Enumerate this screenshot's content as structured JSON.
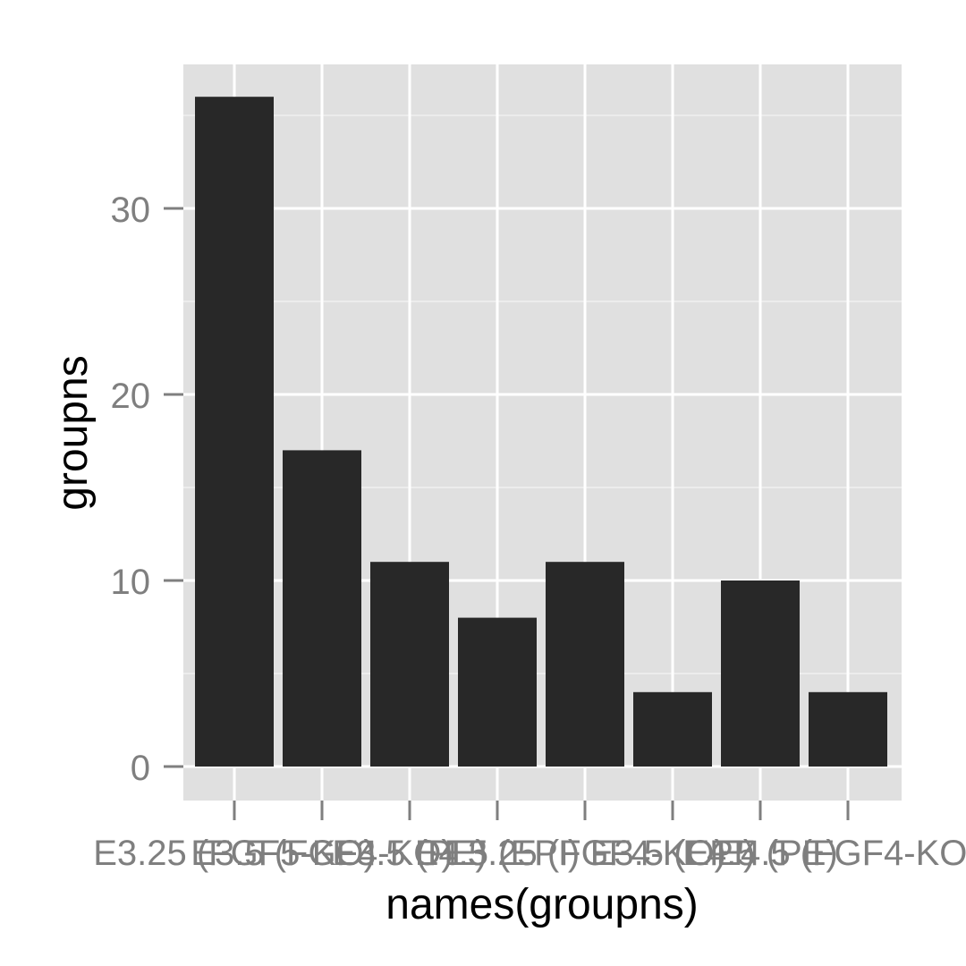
{
  "chart_data": {
    "type": "bar",
    "categories": [
      "E3.25 (FGF5-KO)",
      "E3.5 (FGF4-KO)",
      "E3.5 (PE)",
      "E4.5 (EPI)",
      "E3.25 (FGF4-KO)",
      "E3.5 (EPI)",
      "E4.5 (PE)",
      "E4.5 (FGF4-KO)"
    ],
    "values": [
      36,
      17,
      11,
      8,
      11,
      4,
      10,
      4
    ],
    "xlabel": "names(groupns)",
    "ylabel": "groupns",
    "ylim": [
      0,
      36
    ],
    "y_ticks": [
      0,
      10,
      20,
      30
    ],
    "grid": true,
    "colors": {
      "bar": "#282828",
      "panel": "#e0e0e0",
      "grid_major": "#ffffff",
      "grid_minor": "#efefef",
      "tick": "#7f7f7f"
    }
  }
}
